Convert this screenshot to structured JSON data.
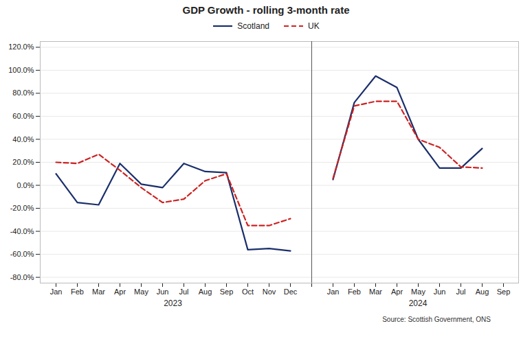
{
  "chart_data": {
    "type": "line",
    "title": "GDP Growth - rolling 3-month rate",
    "categories": [
      "Jan",
      "Feb",
      "Mar",
      "Apr",
      "May",
      "Jun",
      "Jul",
      "Aug",
      "Sep",
      "Oct",
      "Nov",
      "Dec",
      null,
      "Jan",
      "Feb",
      "Mar",
      "Apr",
      "May",
      "Jun",
      "Jul",
      "Aug",
      "Sep"
    ],
    "series": [
      {
        "name": "Scotland",
        "color": "#1a2f6b",
        "line_style": "solid",
        "values": [
          0.1,
          -0.15,
          -0.17,
          0.19,
          0.01,
          -0.02,
          0.19,
          0.12,
          0.11,
          -0.56,
          -0.55,
          -0.57,
          null,
          0.05,
          0.72,
          0.95,
          0.85,
          0.4,
          0.15,
          0.15,
          0.32,
          null
        ]
      },
      {
        "name": "UK",
        "color": "#cc2222",
        "line_style": "dashed",
        "values": [
          0.2,
          0.19,
          0.27,
          0.13,
          -0.02,
          -0.15,
          -0.12,
          0.04,
          0.1,
          -0.35,
          -0.35,
          -0.29,
          null,
          0.06,
          0.69,
          0.73,
          0.73,
          0.4,
          0.33,
          0.16,
          0.15,
          null
        ]
      }
    ],
    "ylim": [
      -0.85,
      1.25
    ],
    "yticks": [
      {
        "value": -0.8,
        "label": "-80.0%"
      },
      {
        "value": -0.6,
        "label": "-60.0%"
      },
      {
        "value": -0.4,
        "label": "-40.0%"
      },
      {
        "value": -0.2,
        "label": "-20.0%"
      },
      {
        "value": 0.0,
        "label": "0.0%"
      },
      {
        "value": 0.2,
        "label": "20.0%"
      },
      {
        "value": 0.4,
        "label": "40.0%"
      },
      {
        "value": 0.6,
        "label": "60.0%"
      },
      {
        "value": 0.8,
        "label": "80.0%"
      },
      {
        "value": 1.0,
        "label": "100.0%"
      },
      {
        "value": 1.2,
        "label": "120.0%"
      }
    ],
    "grid": true,
    "legend": "top",
    "annotations": [
      "2023",
      "2024"
    ],
    "caption": "Source: Scottish Government, ONS"
  }
}
